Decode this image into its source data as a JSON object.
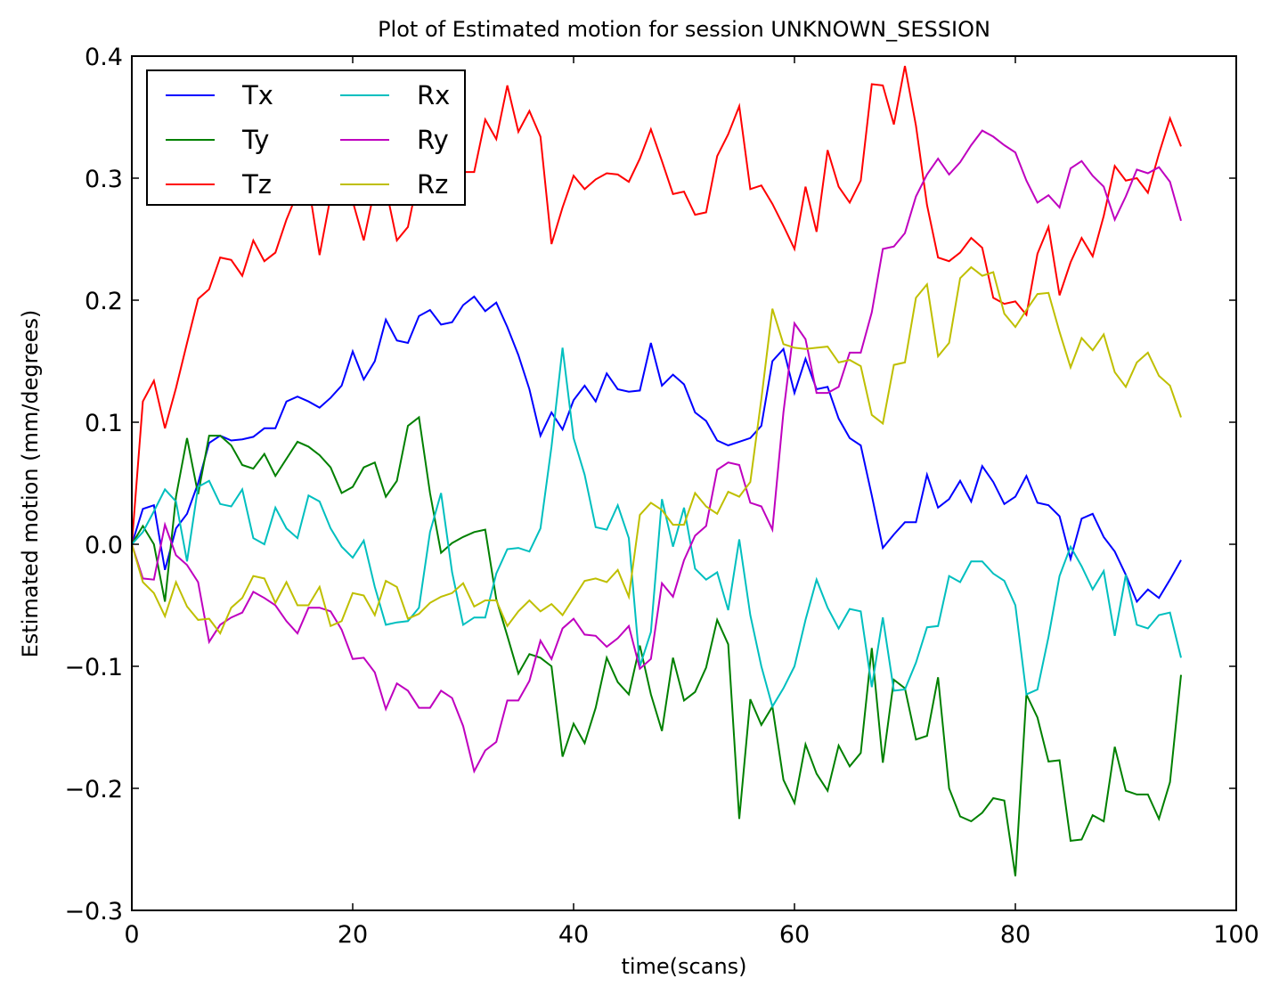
{
  "chart_data": {
    "type": "line",
    "title": "Plot of Estimated motion for session UNKNOWN_SESSION",
    "xlabel": "time(scans)",
    "ylabel": "Estimated motion (mm/degrees)",
    "xlim": [
      0,
      100
    ],
    "ylim": [
      -0.3,
      0.4
    ],
    "xticks": [
      0,
      20,
      40,
      60,
      80,
      100
    ],
    "xtick_labels": [
      "0",
      "20",
      "40",
      "60",
      "80",
      "100"
    ],
    "yticks": [
      -0.3,
      -0.2,
      -0.1,
      0.0,
      0.1,
      0.2,
      0.3,
      0.4
    ],
    "ytick_labels": [
      "−0.3",
      "−0.2",
      "−0.1",
      "0.0",
      "0.1",
      "0.2",
      "0.3",
      "0.4"
    ],
    "grid": false,
    "legend_position": "top-left",
    "legend_columns": 2,
    "x": [
      0,
      1,
      2,
      3,
      4,
      5,
      6,
      7,
      8,
      9,
      10,
      11,
      12,
      13,
      14,
      15,
      16,
      17,
      18,
      19,
      20,
      21,
      22,
      23,
      24,
      25,
      26,
      27,
      28,
      29,
      30,
      31,
      32,
      33,
      34,
      35,
      36,
      37,
      38,
      39,
      40,
      41,
      42,
      43,
      44,
      45,
      46,
      47,
      48,
      49,
      50,
      51,
      52,
      53,
      54,
      55,
      56,
      57,
      58,
      59,
      60,
      61,
      62,
      63,
      64,
      65,
      66,
      67,
      68,
      69,
      70,
      71,
      72,
      73,
      74,
      75,
      76,
      77,
      78,
      79,
      80,
      81,
      82,
      83,
      84,
      85,
      86,
      87,
      88,
      89,
      90,
      91,
      92,
      93,
      94,
      95
    ],
    "series": [
      {
        "name": "Tx",
        "color": "#0000ff",
        "values": [
          0.0,
          0.029,
          0.032,
          -0.021,
          0.013,
          0.025,
          0.05,
          0.083,
          0.089,
          0.085,
          0.086,
          0.088,
          0.095,
          0.095,
          0.117,
          0.121,
          0.117,
          0.112,
          0.12,
          0.13,
          0.158,
          0.135,
          0.15,
          0.184,
          0.167,
          0.165,
          0.187,
          0.192,
          0.18,
          0.182,
          0.196,
          0.203,
          0.191,
          0.198,
          0.178,
          0.155,
          0.127,
          0.089,
          0.108,
          0.094,
          0.118,
          0.13,
          0.117,
          0.14,
          0.127,
          0.125,
          0.126,
          0.165,
          0.13,
          0.139,
          0.131,
          0.108,
          0.101,
          0.085,
          0.081,
          0.084,
          0.087,
          0.097,
          0.15,
          0.16,
          0.124,
          0.152,
          0.127,
          0.129,
          0.103,
          0.087,
          0.081,
          0.04,
          -0.003,
          0.008,
          0.018,
          0.018,
          0.057,
          0.03,
          0.037,
          0.052,
          0.035,
          0.064,
          0.051,
          0.033,
          0.039,
          0.056,
          0.034,
          0.032,
          0.023,
          -0.012,
          0.021,
          0.025,
          0.006,
          -0.006,
          -0.025,
          -0.047,
          -0.037,
          -0.044,
          -0.029,
          -0.013
        ]
      },
      {
        "name": "Ty",
        "color": "#008000",
        "values": [
          0.0,
          0.015,
          0.0,
          -0.047,
          0.039,
          0.087,
          0.041,
          0.089,
          0.089,
          0.081,
          0.065,
          0.062,
          0.074,
          0.056,
          0.07,
          0.084,
          0.08,
          0.073,
          0.063,
          0.042,
          0.047,
          0.063,
          0.067,
          0.039,
          0.052,
          0.097,
          0.104,
          0.042,
          -0.007,
          0.001,
          0.006,
          0.01,
          0.012,
          -0.045,
          -0.075,
          -0.106,
          -0.09,
          -0.093,
          -0.1,
          -0.174,
          -0.147,
          -0.163,
          -0.134,
          -0.093,
          -0.113,
          -0.123,
          -0.083,
          -0.123,
          -0.153,
          -0.093,
          -0.128,
          -0.121,
          -0.101,
          -0.062,
          -0.082,
          -0.225,
          -0.127,
          -0.148,
          -0.133,
          -0.193,
          -0.212,
          -0.164,
          -0.188,
          -0.202,
          -0.165,
          -0.182,
          -0.171,
          -0.085,
          -0.179,
          -0.111,
          -0.118,
          -0.16,
          -0.157,
          -0.109,
          -0.2,
          -0.223,
          -0.227,
          -0.22,
          -0.208,
          -0.21,
          -0.272,
          -0.123,
          -0.142,
          -0.178,
          -0.177,
          -0.243,
          -0.242,
          -0.222,
          -0.227,
          -0.166,
          -0.202,
          -0.205,
          -0.205,
          -0.225,
          -0.195,
          -0.107
        ]
      },
      {
        "name": "Tz",
        "color": "#ff0000",
        "values": [
          0.0,
          0.117,
          0.134,
          0.095,
          0.128,
          0.165,
          0.201,
          0.209,
          0.235,
          0.233,
          0.22,
          0.249,
          0.232,
          0.239,
          0.266,
          0.288,
          0.295,
          0.237,
          0.285,
          0.287,
          0.281,
          0.249,
          0.292,
          0.292,
          0.249,
          0.26,
          0.304,
          0.305,
          0.31,
          0.306,
          0.305,
          0.305,
          0.348,
          0.332,
          0.376,
          0.338,
          0.355,
          0.334,
          0.246,
          0.276,
          0.302,
          0.291,
          0.299,
          0.304,
          0.303,
          0.297,
          0.316,
          0.34,
          0.314,
          0.287,
          0.289,
          0.27,
          0.272,
          0.318,
          0.336,
          0.359,
          0.291,
          0.294,
          0.279,
          0.261,
          0.242,
          0.293,
          0.256,
          0.323,
          0.293,
          0.28,
          0.298,
          0.377,
          0.376,
          0.344,
          0.392,
          0.343,
          0.278,
          0.235,
          0.232,
          0.239,
          0.251,
          0.243,
          0.202,
          0.197,
          0.199,
          0.188,
          0.238,
          0.26,
          0.204,
          0.231,
          0.251,
          0.236,
          0.269,
          0.31,
          0.298,
          0.3,
          0.288,
          0.32,
          0.349,
          0.326
        ]
      },
      {
        "name": "Rx",
        "color": "#00bfbf",
        "values": [
          0.0,
          0.01,
          0.027,
          0.045,
          0.035,
          -0.014,
          0.047,
          0.052,
          0.033,
          0.031,
          0.045,
          0.005,
          0.0,
          0.03,
          0.013,
          0.005,
          0.04,
          0.035,
          0.013,
          -0.002,
          -0.011,
          0.003,
          -0.035,
          -0.066,
          -0.064,
          -0.063,
          -0.052,
          0.01,
          0.042,
          -0.023,
          -0.066,
          -0.06,
          -0.06,
          -0.024,
          -0.004,
          -0.003,
          -0.006,
          0.013,
          0.08,
          0.161,
          0.087,
          0.057,
          0.014,
          0.012,
          0.032,
          0.005,
          -0.1,
          -0.072,
          0.037,
          -0.002,
          0.03,
          -0.02,
          -0.029,
          -0.023,
          -0.054,
          0.004,
          -0.058,
          -0.1,
          -0.133,
          -0.118,
          -0.1,
          -0.062,
          -0.029,
          -0.052,
          -0.069,
          -0.053,
          -0.055,
          -0.117,
          -0.06,
          -0.12,
          -0.119,
          -0.097,
          -0.068,
          -0.067,
          -0.026,
          -0.031,
          -0.014,
          -0.014,
          -0.024,
          -0.03,
          -0.05,
          -0.123,
          -0.119,
          -0.076,
          -0.026,
          -0.002,
          -0.018,
          -0.037,
          -0.022,
          -0.075,
          -0.025,
          -0.066,
          -0.069,
          -0.058,
          -0.056,
          -0.093
        ]
      },
      {
        "name": "Ry",
        "color": "#bf00bf",
        "values": [
          0.0,
          -0.028,
          -0.029,
          0.016,
          -0.009,
          -0.017,
          -0.031,
          -0.08,
          -0.066,
          -0.06,
          -0.056,
          -0.039,
          -0.044,
          -0.05,
          -0.063,
          -0.073,
          -0.052,
          -0.052,
          -0.055,
          -0.07,
          -0.094,
          -0.093,
          -0.105,
          -0.135,
          -0.114,
          -0.12,
          -0.134,
          -0.134,
          -0.12,
          -0.126,
          -0.149,
          -0.186,
          -0.169,
          -0.162,
          -0.128,
          -0.128,
          -0.112,
          -0.079,
          -0.094,
          -0.069,
          -0.061,
          -0.074,
          -0.075,
          -0.084,
          -0.077,
          -0.067,
          -0.102,
          -0.094,
          -0.032,
          -0.043,
          -0.013,
          0.007,
          0.015,
          0.061,
          0.067,
          0.065,
          0.034,
          0.031,
          0.012,
          0.108,
          0.181,
          0.168,
          0.124,
          0.124,
          0.129,
          0.157,
          0.157,
          0.19,
          0.242,
          0.244,
          0.255,
          0.285,
          0.303,
          0.316,
          0.303,
          0.313,
          0.327,
          0.339,
          0.334,
          0.327,
          0.321,
          0.298,
          0.28,
          0.286,
          0.276,
          0.308,
          0.314,
          0.302,
          0.293,
          0.266,
          0.285,
          0.307,
          0.304,
          0.309,
          0.297,
          0.265
        ]
      },
      {
        "name": "Rz",
        "color": "#bfbf00",
        "values": [
          0.0,
          -0.031,
          -0.04,
          -0.059,
          -0.031,
          -0.051,
          -0.062,
          -0.061,
          -0.073,
          -0.052,
          -0.044,
          -0.026,
          -0.028,
          -0.048,
          -0.031,
          -0.05,
          -0.05,
          -0.035,
          -0.067,
          -0.063,
          -0.04,
          -0.042,
          -0.058,
          -0.03,
          -0.035,
          -0.061,
          -0.057,
          -0.048,
          -0.043,
          -0.04,
          -0.032,
          -0.051,
          -0.046,
          -0.046,
          -0.067,
          -0.055,
          -0.046,
          -0.055,
          -0.049,
          -0.058,
          -0.044,
          -0.03,
          -0.028,
          -0.031,
          -0.021,
          -0.043,
          0.024,
          0.034,
          0.028,
          0.016,
          0.016,
          0.042,
          0.031,
          0.025,
          0.043,
          0.039,
          0.051,
          0.119,
          0.193,
          0.164,
          0.161,
          0.16,
          0.161,
          0.162,
          0.149,
          0.151,
          0.146,
          0.106,
          0.099,
          0.147,
          0.149,
          0.202,
          0.213,
          0.154,
          0.165,
          0.218,
          0.227,
          0.22,
          0.223,
          0.189,
          0.178,
          0.192,
          0.205,
          0.206,
          0.174,
          0.145,
          0.169,
          0.159,
          0.172,
          0.141,
          0.129,
          0.149,
          0.157,
          0.138,
          0.13,
          0.104
        ]
      }
    ]
  }
}
